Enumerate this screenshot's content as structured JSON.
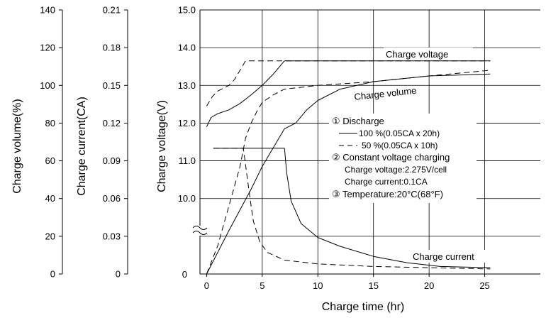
{
  "chart_data": {
    "type": "line",
    "x": {
      "label": "Charge time  (hr)",
      "ticks": [
        0,
        5,
        10,
        15,
        20,
        25
      ],
      "range": [
        -0.6,
        30
      ]
    },
    "axes": [
      {
        "key": "volume",
        "label": "Charge volume(%)",
        "ticks": [
          "0",
          "20",
          "40",
          "60",
          "80",
          "100",
          "120",
          "140"
        ],
        "min": 0,
        "max": 140,
        "step": 20
      },
      {
        "key": "current",
        "label": "Charge current(CA)",
        "ticks": [
          "0",
          "0.03",
          "0.06",
          "0.09",
          "0.12",
          "0.15",
          "0.18",
          "0.21"
        ],
        "min": 0,
        "max": 0.21,
        "step": 0.03
      },
      {
        "key": "voltage",
        "label": "Charge voltage(V)",
        "ticks": [
          "10.0",
          "11.0",
          "12.0",
          "13.0",
          "14.0",
          "15.0"
        ],
        "tick_values": [
          10,
          11,
          12,
          13,
          14,
          15
        ],
        "broken_below": 10,
        "bottom_label": "0"
      }
    ],
    "curve_labels": {
      "charge_voltage": "Charge voltage",
      "charge_volume": "Charge volume",
      "charge_current": "Charge current"
    },
    "legend": {
      "discharge_title": "① Discharge",
      "discharge_100": "100 %(0.05CA x 20h)",
      "discharge_50": "50 %(0.05CA x 10h)",
      "cv_title": "② Constant voltage charging",
      "cv_voltage": "Charge voltage:2.275V/cell",
      "cv_current": "Charge current:0.1CA",
      "temperature": "③ Temperature:20°C(68°F)"
    },
    "series": [
      {
        "key": "voltage_100",
        "axis": "voltage",
        "style": "solid",
        "points": [
          [
            0,
            11.9
          ],
          [
            0.4,
            12.15
          ],
          [
            1,
            12.25
          ],
          [
            2,
            12.35
          ],
          [
            3,
            12.52
          ],
          [
            4,
            12.75
          ],
          [
            5,
            13.0
          ],
          [
            6,
            13.3
          ],
          [
            7,
            13.65
          ],
          [
            25.5,
            13.65
          ]
        ]
      },
      {
        "key": "voltage_50",
        "axis": "voltage",
        "style": "dashed",
        "points": [
          [
            0,
            12.45
          ],
          [
            0.5,
            12.7
          ],
          [
            1,
            12.85
          ],
          [
            2,
            13.0
          ],
          [
            2.5,
            13.15
          ],
          [
            3,
            13.4
          ],
          [
            3.5,
            13.65
          ],
          [
            25.5,
            13.65
          ]
        ]
      },
      {
        "key": "volume_100",
        "axis": "volume",
        "style": "solid",
        "points": [
          [
            0,
            0
          ],
          [
            2,
            23
          ],
          [
            4,
            45
          ],
          [
            5,
            57
          ],
          [
            7,
            77
          ],
          [
            8,
            80
          ],
          [
            9,
            87
          ],
          [
            10,
            92
          ],
          [
            12,
            98
          ],
          [
            15,
            102
          ],
          [
            20,
            105
          ],
          [
            25.5,
            106
          ]
        ]
      },
      {
        "key": "volume_50",
        "axis": "volume",
        "style": "dashed",
        "points": [
          [
            0,
            0
          ],
          [
            1,
            15
          ],
          [
            2,
            36
          ],
          [
            3,
            57
          ],
          [
            3.5,
            72
          ],
          [
            4,
            80
          ],
          [
            4.5,
            86
          ],
          [
            5,
            91
          ],
          [
            6,
            95
          ],
          [
            7,
            98
          ],
          [
            10,
            100
          ],
          [
            15,
            102
          ],
          [
            20,
            105
          ],
          [
            25.5,
            108
          ]
        ]
      },
      {
        "key": "current_100",
        "axis": "current",
        "style": "solid",
        "points": [
          [
            0.6,
            0.1
          ],
          [
            7,
            0.1
          ],
          [
            7.2,
            0.08
          ],
          [
            7.6,
            0.058
          ],
          [
            8.5,
            0.04
          ],
          [
            10,
            0.029
          ],
          [
            12,
            0.022
          ],
          [
            15,
            0.014
          ],
          [
            18,
            0.009
          ],
          [
            21,
            0.006
          ],
          [
            25.5,
            0.005
          ]
        ]
      },
      {
        "key": "current_50",
        "axis": "current",
        "style": "dashed",
        "points": [
          [
            0.6,
            0.1
          ],
          [
            3.3,
            0.1
          ],
          [
            3.6,
            0.08
          ],
          [
            3.9,
            0.06
          ],
          [
            4.2,
            0.042
          ],
          [
            4.8,
            0.025
          ],
          [
            5.5,
            0.017
          ],
          [
            7,
            0.011
          ],
          [
            10,
            0.008
          ],
          [
            15,
            0.006
          ],
          [
            20,
            0.005
          ],
          [
            25.5,
            0.004
          ]
        ]
      }
    ]
  }
}
